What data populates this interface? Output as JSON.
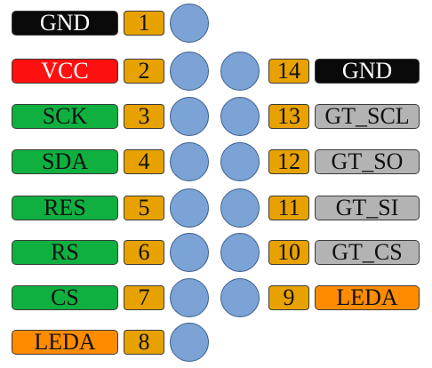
{
  "pins": [
    {
      "num": "1",
      "name": "GND"
    },
    {
      "num": "2",
      "name": "VCC"
    },
    {
      "num": "3",
      "name": "SCK"
    },
    {
      "num": "4",
      "name": "SDA"
    },
    {
      "num": "5",
      "name": "RES"
    },
    {
      "num": "6",
      "name": "RS"
    },
    {
      "num": "7",
      "name": "CS"
    },
    {
      "num": "8",
      "name": "LEDA"
    },
    {
      "num": "9",
      "name": "LEDA"
    },
    {
      "num": "10",
      "name": "GT_CS"
    },
    {
      "num": "11",
      "name": "GT_SI"
    },
    {
      "num": "12",
      "name": "GT_SO"
    },
    {
      "num": "13",
      "name": "GT_SCL"
    },
    {
      "num": "14",
      "name": "GND"
    }
  ],
  "colors": {
    "pin_dot": "#7ba3d6",
    "number_box": "#e8a200",
    "gnd": "#0a0a0a",
    "vcc": "#ff1010",
    "signal": "#10b040",
    "leda": "#ff8c00",
    "font_chip": "#b3b3b3"
  }
}
